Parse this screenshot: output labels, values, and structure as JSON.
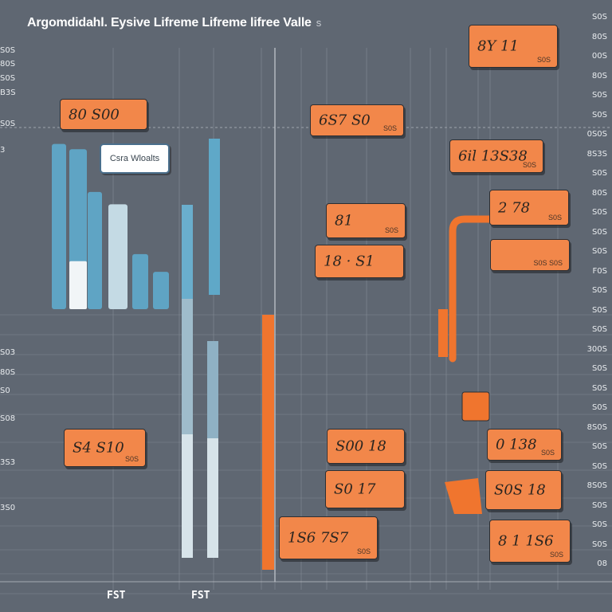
{
  "title": {
    "main": "Argomdidahl. Eysive Lifreme Lifreme lifree Valle",
    "suffix": "s"
  },
  "legend": {
    "label": "Csra Wloalts"
  },
  "x_labels": [
    "FST",
    "FST"
  ],
  "colors": {
    "background": "#5f6772",
    "accent": "#f2874a",
    "bar_blue": "#5fa8c8",
    "bar_light": "#dce9ef",
    "bar_orange": "#f0752e",
    "grid": "#7d858f"
  },
  "chart_data": {
    "type": "bar",
    "title": "Argomdidahl. Eysive Lifreme Lifreme lifree Valle",
    "left_ticks": [
      "S0S",
      "80S",
      "S0S",
      "B3S",
      "S0S",
      "3",
      "S03",
      "80S",
      "S0",
      "S08",
      "3S3",
      "3S0"
    ],
    "right_ticks": [
      "S0S",
      "80S",
      "00S",
      "80S",
      "S0S",
      "S0S",
      "0S0S",
      "8S3S",
      "S0S",
      "80S",
      "S0S",
      "S0S",
      "S0S",
      "F0S",
      "S0S",
      "S0S",
      "S0S",
      "300S",
      "S0S",
      "S0S",
      "S0S",
      "8S0S",
      "S0S",
      "S0S",
      "8S0S",
      "S0S",
      "S0S",
      "S0S",
      "08"
    ],
    "callouts": [
      {
        "value": "8Y 11",
        "sub": "S0S"
      },
      {
        "value": "80 S00",
        "sub": ""
      },
      {
        "value": "6S7 S0",
        "sub": "S0S"
      },
      {
        "value": "6il 13S38",
        "sub": "S0S"
      },
      {
        "value": "2 78",
        "sub": "S0S"
      },
      {
        "value": "81",
        "sub": "S0S"
      },
      {
        "value": "18 · S1",
        "sub": ""
      },
      {
        "value": "",
        "sub": "S0S S0S"
      },
      {
        "value": "S00 18",
        "sub": ""
      },
      {
        "value": "0 138",
        "sub": "S0S"
      },
      {
        "value": "S4 S10",
        "sub": "S0S"
      },
      {
        "value": "S0 17",
        "sub": ""
      },
      {
        "value": "S0S 18",
        "sub": ""
      },
      {
        "value": "1S6 7S7",
        "sub": "S0S"
      },
      {
        "value": "8 1 1S6",
        "sub": "S0S"
      }
    ],
    "bars": [
      {
        "name": "bar-1",
        "color": "blue",
        "top": 0.93,
        "light_from": 0.0,
        "light_to": 0.0
      },
      {
        "name": "bar-2",
        "color": "blue",
        "top": 0.9,
        "light_from": 0.0,
        "light_to": 0.3
      },
      {
        "name": "bar-3",
        "color": "blue",
        "top": 0.66,
        "light_from": 0,
        "light_to": 0
      },
      {
        "name": "bar-4",
        "color": "light",
        "top": 0.59,
        "light_from": 0,
        "light_to": 1
      },
      {
        "name": "bar-5",
        "color": "blue",
        "top": 0.31,
        "light_from": 0,
        "light_to": 0
      },
      {
        "name": "bar-6",
        "color": "blue",
        "top": 0.21,
        "light_from": 0,
        "light_to": 0
      }
    ],
    "grid": true,
    "legend_placement": "top-left"
  }
}
